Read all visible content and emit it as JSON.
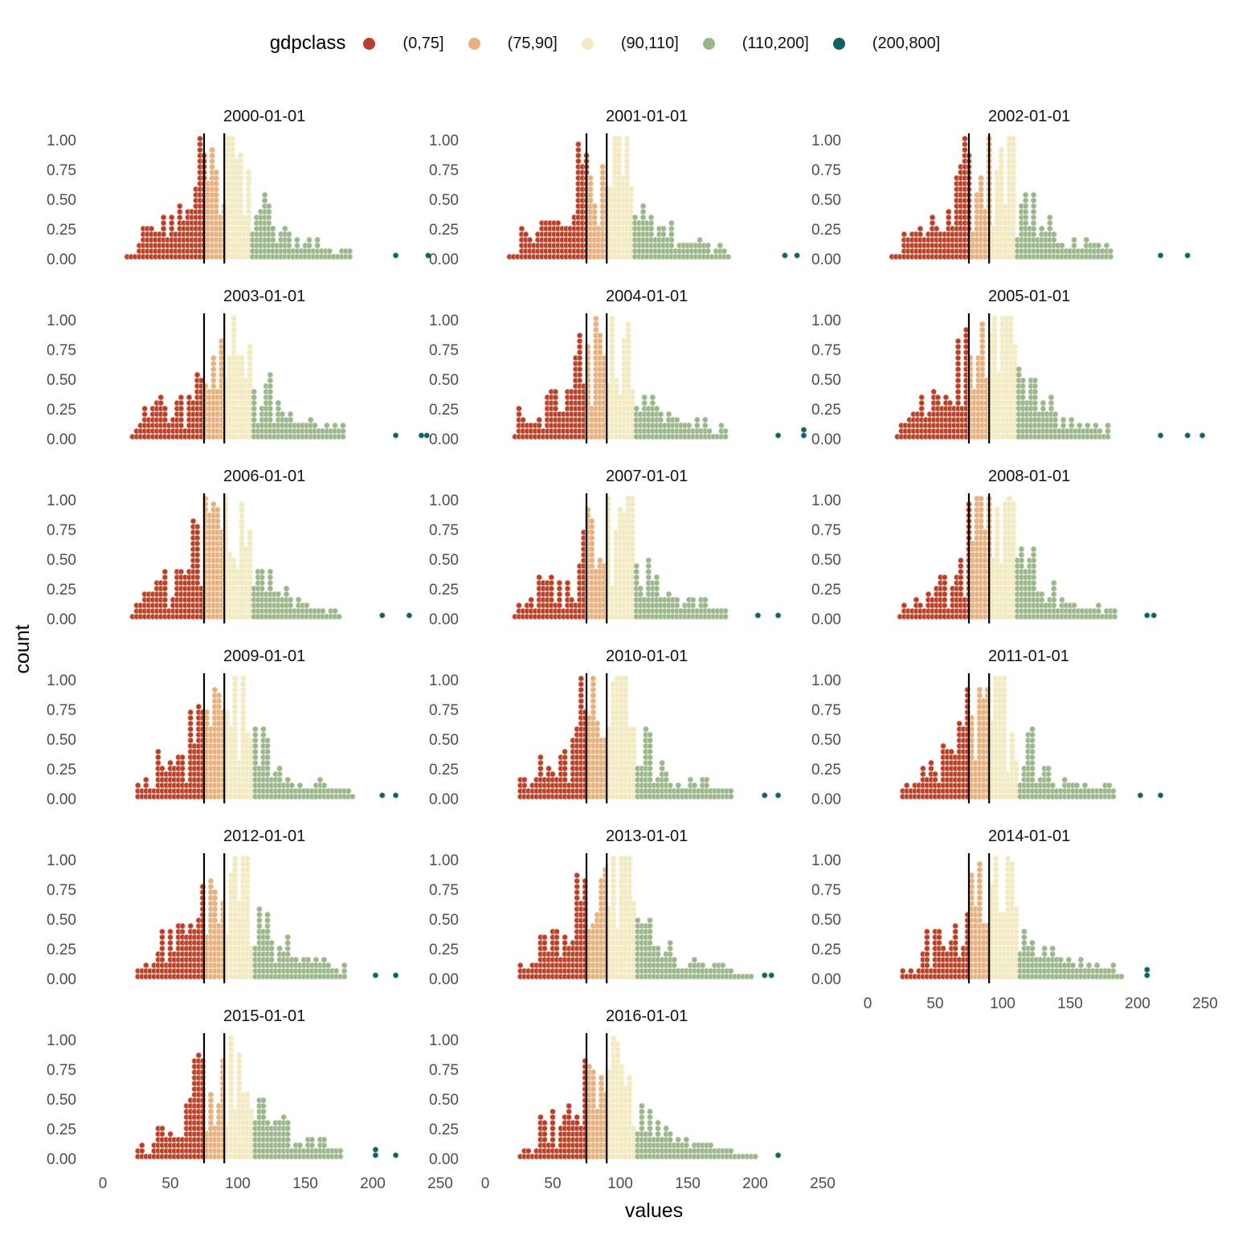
{
  "chart_data": {
    "type": "dotplot",
    "legend": {
      "title": "gdpclass",
      "position": "top",
      "items": [
        {
          "label": "(0,75]",
          "color": "#b8402a"
        },
        {
          "label": "(75,90]",
          "color": "#e6b07f"
        },
        {
          "label": "(90,110]",
          "color": "#f2eac1"
        },
        {
          "label": "(110,200]",
          "color": "#9cb68c"
        },
        {
          "label": "(200,800]",
          "color": "#145f5f"
        }
      ]
    },
    "xlabel": "values",
    "ylabel": "count",
    "xlim": [
      0,
      250
    ],
    "ylim": [
      0,
      1
    ],
    "x_ticks": [
      0,
      50,
      100,
      150,
      200,
      250
    ],
    "y_ticks": [
      "0.00",
      "0.25",
      "0.50",
      "0.75",
      "1.00"
    ],
    "vlines": [
      75,
      90
    ],
    "panels": [
      {
        "title": "2000-01-01",
        "extremes": [
          217,
          241
        ]
      },
      {
        "title": "2001-01-01",
        "extremes": [
          222,
          231
        ]
      },
      {
        "title": "2002-01-01",
        "extremes": [
          217,
          237
        ]
      },
      {
        "title": "2003-01-01",
        "extremes": [
          217,
          236,
          240
        ]
      },
      {
        "title": "2004-01-01",
        "extremes": [
          217,
          236,
          236
        ]
      },
      {
        "title": "2005-01-01",
        "extremes": [
          217,
          237,
          248
        ]
      },
      {
        "title": "2006-01-01",
        "extremes": [
          207,
          227
        ]
      },
      {
        "title": "2007-01-01",
        "extremes": [
          202,
          217
        ]
      },
      {
        "title": "2008-01-01",
        "extremes": [
          207,
          212
        ]
      },
      {
        "title": "2009-01-01",
        "extremes": [
          207,
          217
        ]
      },
      {
        "title": "2010-01-01",
        "extremes": [
          207,
          217
        ]
      },
      {
        "title": "2011-01-01",
        "extremes": [
          202,
          217
        ]
      },
      {
        "title": "2012-01-01",
        "extremes": [
          202,
          217
        ]
      },
      {
        "title": "2013-01-01",
        "extremes": [
          207,
          212
        ]
      },
      {
        "title": "2014-01-01",
        "extremes": [
          207,
          207
        ]
      },
      {
        "title": "2015-01-01",
        "extremes": [
          202,
          202,
          217
        ]
      },
      {
        "title": "2016-01-01",
        "extremes": [
          217
        ]
      }
    ]
  }
}
